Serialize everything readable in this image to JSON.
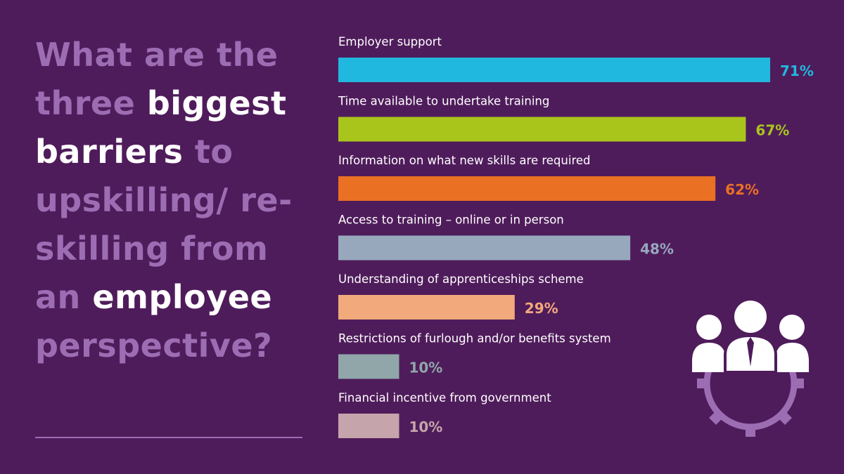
{
  "headline": {
    "segments": [
      {
        "text": "What are the three ",
        "emphasis": false
      },
      {
        "text": "biggest barriers",
        "emphasis": true
      },
      {
        "text": " to upskilling/ re-skilling from an ",
        "emphasis": false
      },
      {
        "text": "employee",
        "emphasis": true
      },
      {
        "text": " perspective?",
        "emphasis": false
      }
    ]
  },
  "colors": {
    "background": "#4f1c5b",
    "muted_text": "#9d6db4",
    "emphasis_text": "#ffffff",
    "category_label": "#ffffff"
  },
  "chart_data": {
    "type": "bar",
    "orientation": "horizontal",
    "categories": [
      "Employer support",
      "Time available to undertake training",
      "Information on what new skills are required",
      "Access to training – online or in person",
      "Understanding of apprenticeships scheme",
      "Restrictions of furlough and/or benefits system",
      "Financial incentive from government"
    ],
    "values": [
      71,
      67,
      62,
      48,
      29,
      10,
      10
    ],
    "value_labels": [
      "71%",
      "67%",
      "62%",
      "48%",
      "29%",
      "10%",
      "10%"
    ],
    "bar_colors": [
      "#21b8df",
      "#a9c51c",
      "#ea7024",
      "#97a8bd",
      "#f2a97b",
      "#91a6a9",
      "#c6a4ab"
    ],
    "label_colors": [
      "#21b8df",
      "#a9c51c",
      "#ea7024",
      "#97a8bd",
      "#f2a97b",
      "#91a6a9",
      "#c6a4ab"
    ],
    "unit": "%",
    "xlim": [
      0,
      71
    ],
    "grid": false,
    "legend": "none"
  },
  "icons": {
    "team": "team-gear-icon"
  }
}
